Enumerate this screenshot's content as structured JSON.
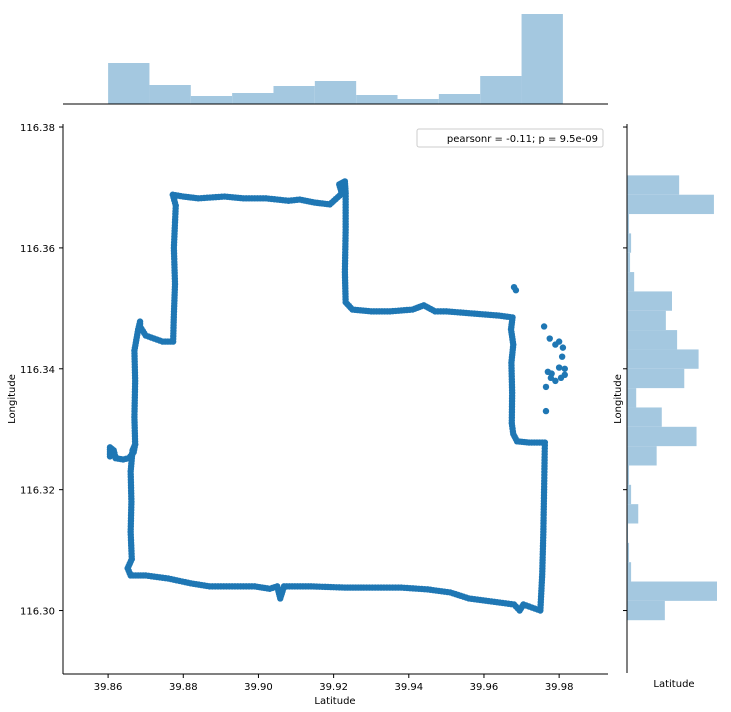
{
  "chart_data": {
    "type": "scatter",
    "title": "",
    "xlabel": "Latitude",
    "ylabel": "Longitude",
    "xlim": [
      39.848,
      39.993
    ],
    "ylim": [
      116.2895,
      116.3805
    ],
    "xticks": [
      "39.86",
      "39.88",
      "39.90",
      "39.92",
      "39.94",
      "39.96",
      "39.98"
    ],
    "xtick_values": [
      39.86,
      39.88,
      39.9,
      39.92,
      39.94,
      39.96,
      39.98
    ],
    "yticks": [
      "116.30",
      "116.32",
      "116.34",
      "116.36",
      "116.38"
    ],
    "ytick_values": [
      116.3,
      116.32,
      116.34,
      116.36,
      116.38
    ],
    "legend": {
      "text": "pearsonr = -0.11; p = 9.5e-09",
      "placement": "top-right"
    },
    "marginal_x": {
      "xlabel": "",
      "bins": [
        {
          "x0": 39.86,
          "x1": 39.871,
          "count": 41
        },
        {
          "x0": 39.871,
          "x1": 39.882,
          "count": 19
        },
        {
          "x0": 39.882,
          "x1": 39.893,
          "count": 8
        },
        {
          "x0": 39.893,
          "x1": 39.904,
          "count": 11
        },
        {
          "x0": 39.904,
          "x1": 39.915,
          "count": 18
        },
        {
          "x0": 39.915,
          "x1": 39.926,
          "count": 23
        },
        {
          "x0": 39.926,
          "x1": 39.937,
          "count": 9
        },
        {
          "x0": 39.937,
          "x1": 39.948,
          "count": 5
        },
        {
          "x0": 39.948,
          "x1": 39.959,
          "count": 10
        },
        {
          "x0": 39.959,
          "x1": 39.97,
          "count": 28
        },
        {
          "x0": 39.97,
          "x1": 39.981,
          "count": 90
        }
      ]
    },
    "marginal_y": {
      "xlabel": "Latitude",
      "ylabel": "Longitude",
      "bins": [
        {
          "y0": 116.2984,
          "y1": 116.3016,
          "count": 37
        },
        {
          "y0": 116.3016,
          "y1": 116.3048,
          "count": 88
        },
        {
          "y0": 116.3048,
          "y1": 116.308,
          "count": 4
        },
        {
          "y0": 116.308,
          "y1": 116.3112,
          "count": 2
        },
        {
          "y0": 116.3112,
          "y1": 116.3144,
          "count": 1
        },
        {
          "y0": 116.3144,
          "y1": 116.3176,
          "count": 11
        },
        {
          "y0": 116.3176,
          "y1": 116.3208,
          "count": 4
        },
        {
          "y0": 116.3208,
          "y1": 116.324,
          "count": 2
        },
        {
          "y0": 116.324,
          "y1": 116.3272,
          "count": 29
        },
        {
          "y0": 116.3272,
          "y1": 116.3304,
          "count": 68
        },
        {
          "y0": 116.3304,
          "y1": 116.3336,
          "count": 34
        },
        {
          "y0": 116.3336,
          "y1": 116.3368,
          "count": 9
        },
        {
          "y0": 116.3368,
          "y1": 116.34,
          "count": 56
        },
        {
          "y0": 116.34,
          "y1": 116.3432,
          "count": 70
        },
        {
          "y0": 116.3432,
          "y1": 116.3464,
          "count": 49
        },
        {
          "y0": 116.3464,
          "y1": 116.3496,
          "count": 38
        },
        {
          "y0": 116.3496,
          "y1": 116.3528,
          "count": 44
        },
        {
          "y0": 116.3528,
          "y1": 116.356,
          "count": 7
        },
        {
          "y0": 116.356,
          "y1": 116.3592,
          "count": 3
        },
        {
          "y0": 116.3592,
          "y1": 116.3624,
          "count": 4
        },
        {
          "y0": 116.3624,
          "y1": 116.3656,
          "count": 2
        },
        {
          "y0": 116.3656,
          "y1": 116.3688,
          "count": 85
        },
        {
          "y0": 116.3688,
          "y1": 116.372,
          "count": 51
        }
      ]
    },
    "series": [
      {
        "color": "#1f77b4",
        "path": [
          [
            39.8605,
            116.3255
          ],
          [
            39.8605,
            116.327
          ],
          [
            39.8615,
            116.3265
          ],
          [
            39.862,
            116.3252
          ],
          [
            39.864,
            116.325
          ],
          [
            39.8655,
            116.3252
          ],
          [
            39.8668,
            116.3262
          ],
          [
            39.8672,
            116.3275
          ],
          [
            39.8665,
            116.3265
          ],
          [
            39.866,
            116.323
          ],
          [
            39.8662,
            116.318
          ],
          [
            39.866,
            116.313
          ],
          [
            39.8663,
            116.3085
          ],
          [
            39.8652,
            116.307
          ],
          [
            39.866,
            116.3058
          ],
          [
            39.87,
            116.3058
          ],
          [
            39.876,
            116.3053
          ],
          [
            39.882,
            116.3045
          ],
          [
            39.887,
            116.304
          ],
          [
            39.893,
            116.304
          ],
          [
            39.899,
            116.304
          ],
          [
            39.903,
            116.3036
          ],
          [
            39.905,
            116.304
          ],
          [
            39.9058,
            116.302
          ],
          [
            39.9068,
            116.304
          ],
          [
            39.914,
            116.304
          ],
          [
            39.923,
            116.3038
          ],
          [
            39.928,
            116.3038
          ],
          [
            39.938,
            116.3038
          ],
          [
            39.945,
            116.3035
          ],
          [
            39.951,
            116.303
          ],
          [
            39.956,
            116.302
          ],
          [
            39.962,
            116.3015
          ],
          [
            39.968,
            116.301
          ],
          [
            39.9695,
            116.3
          ],
          [
            39.9705,
            116.301
          ],
          [
            39.975,
            116.3
          ],
          [
            39.9755,
            116.306
          ],
          [
            39.9758,
            116.313
          ],
          [
            39.976,
            116.32
          ],
          [
            39.9762,
            116.3278
          ],
          [
            39.972,
            116.3278
          ],
          [
            39.9688,
            116.328
          ],
          [
            39.9678,
            116.3292
          ],
          [
            39.9674,
            116.331
          ],
          [
            39.9675,
            116.336
          ],
          [
            39.9673,
            116.341
          ],
          [
            39.9678,
            116.344
          ],
          [
            39.9672,
            116.3465
          ],
          [
            39.9676,
            116.3485
          ],
          [
            39.964,
            116.3488
          ],
          [
            39.956,
            116.3492
          ],
          [
            39.95,
            116.3495
          ],
          [
            39.947,
            116.3495
          ],
          [
            39.944,
            116.3505
          ],
          [
            39.941,
            116.3498
          ],
          [
            39.935,
            116.3495
          ],
          [
            39.93,
            116.3495
          ],
          [
            39.925,
            116.3498
          ],
          [
            39.9232,
            116.351
          ],
          [
            39.923,
            116.356
          ],
          [
            39.9232,
            116.363
          ],
          [
            39.9232,
            116.369
          ],
          [
            39.923,
            116.371
          ],
          [
            39.9215,
            116.3705
          ],
          [
            39.9222,
            116.369
          ],
          [
            39.919,
            116.3672
          ],
          [
            39.915,
            116.3675
          ],
          [
            39.911,
            116.368
          ],
          [
            39.908,
            116.3678
          ],
          [
            39.902,
            116.3682
          ],
          [
            39.896,
            116.3682
          ],
          [
            39.891,
            116.3685
          ],
          [
            39.884,
            116.3682
          ],
          [
            39.88,
            116.3685
          ],
          [
            39.8772,
            116.3688
          ],
          [
            39.878,
            116.367
          ],
          [
            39.8775,
            116.36
          ],
          [
            39.8778,
            116.354
          ],
          [
            39.8775,
            116.349
          ],
          [
            39.8773,
            116.3445
          ],
          [
            39.8745,
            116.3445
          ],
          [
            39.87,
            116.3455
          ],
          [
            39.8685,
            116.347
          ],
          [
            39.8685,
            116.3478
          ],
          [
            39.868,
            116.3465
          ],
          [
            39.867,
            116.343
          ],
          [
            39.8672,
            116.338
          ],
          [
            39.867,
            116.332
          ],
          [
            39.8672,
            116.3275
          ]
        ],
        "extra_points": [
          [
            39.968,
            116.3535
          ],
          [
            39.9685,
            116.353
          ],
          [
            39.976,
            116.347
          ],
          [
            39.9775,
            116.345
          ],
          [
            39.979,
            116.344
          ],
          [
            39.98,
            116.3445
          ],
          [
            39.981,
            116.3435
          ],
          [
            39.9808,
            116.342
          ],
          [
            39.9815,
            116.34
          ],
          [
            39.9815,
            116.339
          ],
          [
            39.9805,
            116.3385
          ],
          [
            39.979,
            116.338
          ],
          [
            39.978,
            116.3392
          ],
          [
            39.977,
            116.3395
          ],
          [
            39.9765,
            116.337
          ],
          [
            39.9765,
            116.333
          ],
          [
            39.9778,
            116.3385
          ],
          [
            39.98,
            116.3402
          ]
        ]
      }
    ]
  }
}
